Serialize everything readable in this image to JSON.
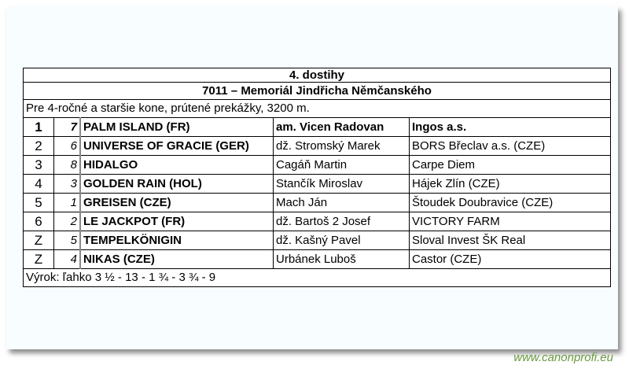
{
  "race": {
    "title": "4. dostihy",
    "name": "7011 – Memoriál Jindřicha Němčanského",
    "conditions": "Pre 4-ročné a staršie kone, prútené prekážky, 3200 m.",
    "results": [
      {
        "pos": "1",
        "num": "7",
        "horse": "PALM ISLAND (FR)",
        "jockey": "am. Vicen Radovan",
        "owner": "Ingos a.s."
      },
      {
        "pos": "2",
        "num": "6",
        "horse": "UNIVERSE OF GRACIE (GER)",
        "jockey": "dž. Stromský Marek",
        "owner": "BORS Břeclav a.s. (CZE)"
      },
      {
        "pos": "3",
        "num": "8",
        "horse": "HIDALGO",
        "jockey": "Cagáň Martin",
        "owner": "Carpe Diem"
      },
      {
        "pos": "4",
        "num": "3",
        "horse": "GOLDEN RAIN (HOL)",
        "jockey": "Stančík Miroslav",
        "owner": "Hájek Zlín (CZE)"
      },
      {
        "pos": "5",
        "num": "1",
        "horse": "GREISEN (CZE)",
        "jockey": "Mach Ján",
        "owner": "Štoudek Doubravice (CZE)"
      },
      {
        "pos": "6",
        "num": "2",
        "horse": "LE JACKPOT (FR)",
        "jockey": "dž. Bartoš 2 Josef",
        "owner": "VICTORY FARM"
      },
      {
        "pos": "Z",
        "num": "5",
        "horse": "TEMPELKÖNIGIN",
        "jockey": "dž. Kašný Pavel",
        "owner": "Sloval Invest ŠK Real"
      },
      {
        "pos": "Z",
        "num": "4",
        "horse": "NIKAS (CZE)",
        "jockey": "Urbánek Luboš",
        "owner": "Castor (CZE)"
      }
    ],
    "verdict": "Výrok: ľahko 3 ½ - 13 - 1 ¾ - 3 ¾ - 9"
  },
  "watermark": "www.canonprofi.eu"
}
